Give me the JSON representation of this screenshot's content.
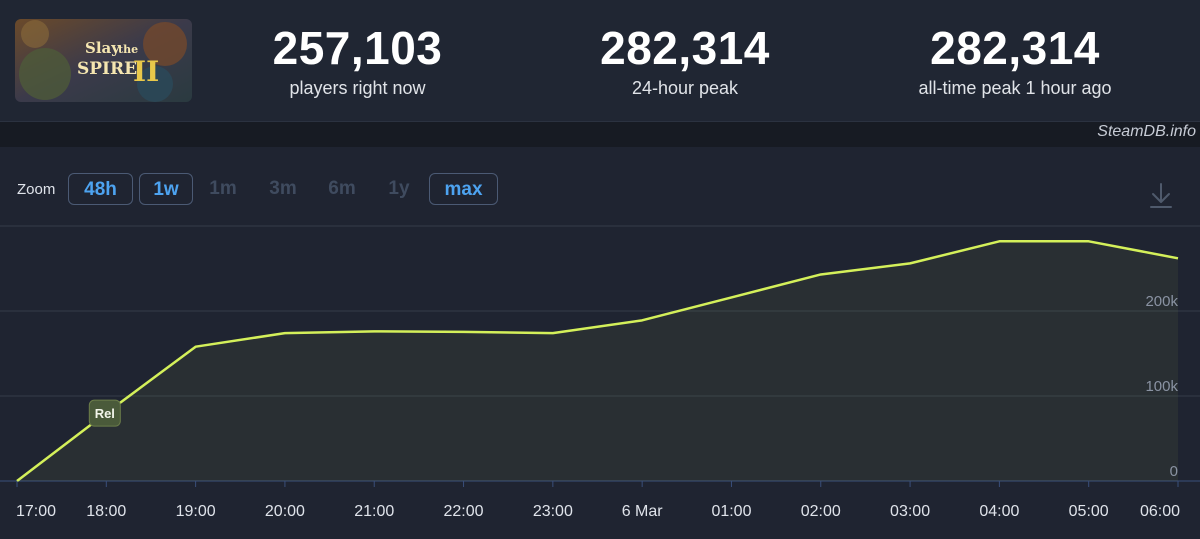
{
  "stats": [
    {
      "value": "257,103",
      "label": "players right now"
    },
    {
      "value": "282,314",
      "label": "24-hour peak"
    },
    {
      "value": "282,314",
      "label": "all-time peak 1 hour ago"
    }
  ],
  "logo": {
    "line1": "Slay",
    "line2": "the",
    "line3": "SPIRE",
    "numeral": "II"
  },
  "credit": "SteamDB.info",
  "zoom": {
    "label": "Zoom",
    "buttons": [
      {
        "label": "48h",
        "active": true
      },
      {
        "label": "1w",
        "active": true
      },
      {
        "label": "1m",
        "active": false
      },
      {
        "label": "3m",
        "active": false
      },
      {
        "label": "6m",
        "active": false
      },
      {
        "label": "1y",
        "active": false
      },
      {
        "label": "max",
        "active": true
      }
    ]
  },
  "download_icon": "download-icon",
  "colors": {
    "line": "#d4f05a",
    "accent": "#4da3f0",
    "background": "#1f2431"
  },
  "chart_data": {
    "type": "area",
    "x": [
      "17:00",
      "18:00",
      "19:00",
      "20:00",
      "21:00",
      "22:00",
      "23:00",
      "6 Mar",
      "01:00",
      "02:00",
      "03:00",
      "04:00",
      "05:00",
      "06:00"
    ],
    "x_tick_labels": [
      "17:00",
      "18:00",
      "19:00",
      "20:00",
      "21:00",
      "22:00",
      "23:00",
      "6 Mar",
      "01:00",
      "02:00",
      "03:00",
      "04:00",
      "05:00",
      "06:00"
    ],
    "series": [
      {
        "values": [
          0,
          80000,
          158000,
          174000,
          176000,
          175500,
          174000,
          189000,
          216000,
          243000,
          256000,
          282000,
          282000,
          262000
        ]
      }
    ],
    "y_ticks": [
      0,
      100000,
      200000
    ],
    "y_tick_labels": [
      "0",
      "100k",
      "200k"
    ],
    "ylim": [
      0,
      300000
    ],
    "annotations": [
      {
        "label": "Rel",
        "x": "18:00"
      }
    ],
    "grid": true,
    "legend": "none"
  }
}
